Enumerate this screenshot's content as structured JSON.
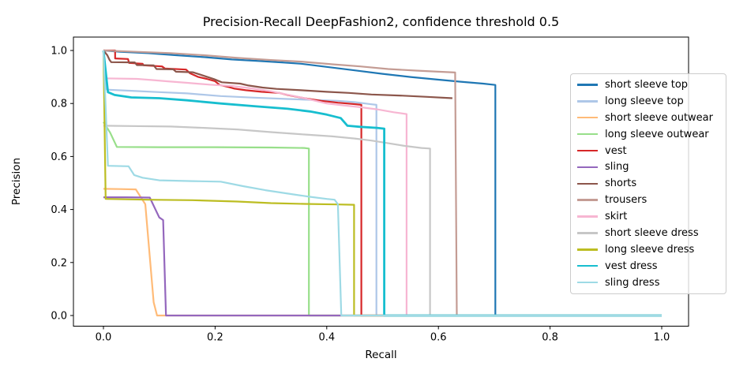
{
  "chart_data": {
    "type": "line",
    "title": "Precision-Recall DeepFashion2, confidence threshold 0.5",
    "xlabel": "Recall",
    "ylabel": "Precision",
    "xlim": [
      0,
      1
    ],
    "ylim": [
      0,
      1
    ],
    "xticks": [
      "0.0",
      "0.2",
      "0.4",
      "0.6",
      "0.8",
      "1.0"
    ],
    "yticks": [
      "0.0",
      "0.2",
      "0.4",
      "0.6",
      "0.8",
      "1.0"
    ],
    "grid": false,
    "legend_position": "upper right inside",
    "legend_border_color": "#cccccc",
    "axes_color": "#000000",
    "series": [
      {
        "name": "short sleeve top",
        "color": "#1f77b4",
        "width": 2.2,
        "points": [
          [
            0,
            1.0
          ],
          [
            0.03,
            0.995
          ],
          [
            0.08,
            0.99
          ],
          [
            0.13,
            0.982
          ],
          [
            0.18,
            0.975
          ],
          [
            0.23,
            0.966
          ],
          [
            0.28,
            0.96
          ],
          [
            0.32,
            0.955
          ],
          [
            0.354,
            0.95
          ],
          [
            0.4,
            0.938
          ],
          [
            0.45,
            0.925
          ],
          [
            0.5,
            0.912
          ],
          [
            0.55,
            0.9
          ],
          [
            0.6,
            0.89
          ],
          [
            0.64,
            0.882
          ],
          [
            0.68,
            0.875
          ],
          [
            0.702,
            0.87
          ],
          [
            0.702,
            0
          ],
          [
            1.0,
            0
          ]
        ]
      },
      {
        "name": "long sleeve top",
        "color": "#aec7e8",
        "width": 2.2,
        "points": [
          [
            0,
            1.0
          ],
          [
            0.006,
            0.852
          ],
          [
            0.05,
            0.848
          ],
          [
            0.1,
            0.843
          ],
          [
            0.15,
            0.838
          ],
          [
            0.21,
            0.828
          ],
          [
            0.27,
            0.822
          ],
          [
            0.33,
            0.817
          ],
          [
            0.38,
            0.813
          ],
          [
            0.42,
            0.81
          ],
          [
            0.45,
            0.805
          ],
          [
            0.48,
            0.797
          ],
          [
            0.489,
            0.795
          ],
          [
            0.489,
            0
          ],
          [
            1.0,
            0
          ]
        ]
      },
      {
        "name": "short sleeve outwear",
        "color": "#ffbb78",
        "width": 2.2,
        "points": [
          [
            0,
            0.478
          ],
          [
            0.03,
            0.477
          ],
          [
            0.058,
            0.476
          ],
          [
            0.075,
            0.42
          ],
          [
            0.09,
            0.05
          ],
          [
            0.096,
            0
          ],
          [
            1.0,
            0
          ]
        ]
      },
      {
        "name": "long sleeve outwear",
        "color": "#98df8a",
        "width": 2.2,
        "points": [
          [
            0,
            0.73
          ],
          [
            0.012,
            0.69
          ],
          [
            0.024,
            0.636
          ],
          [
            0.1,
            0.635
          ],
          [
            0.2,
            0.635
          ],
          [
            0.3,
            0.634
          ],
          [
            0.36,
            0.632
          ],
          [
            0.368,
            0.63
          ],
          [
            0.368,
            0
          ],
          [
            1.0,
            0
          ]
        ]
      },
      {
        "name": "vest",
        "color": "#d62728",
        "width": 2.2,
        "points": [
          [
            0,
            1.0
          ],
          [
            0.021,
            1.0
          ],
          [
            0.021,
            0.97
          ],
          [
            0.044,
            0.968
          ],
          [
            0.046,
            0.953
          ],
          [
            0.07,
            0.95
          ],
          [
            0.072,
            0.944
          ],
          [
            0.105,
            0.94
          ],
          [
            0.11,
            0.932
          ],
          [
            0.148,
            0.928
          ],
          [
            0.155,
            0.914
          ],
          [
            0.17,
            0.9
          ],
          [
            0.185,
            0.893
          ],
          [
            0.2,
            0.884
          ],
          [
            0.208,
            0.87
          ],
          [
            0.225,
            0.862
          ],
          [
            0.235,
            0.856
          ],
          [
            0.255,
            0.85
          ],
          [
            0.283,
            0.844
          ],
          [
            0.315,
            0.84
          ],
          [
            0.33,
            0.832
          ],
          [
            0.36,
            0.82
          ],
          [
            0.39,
            0.81
          ],
          [
            0.42,
            0.803
          ],
          [
            0.448,
            0.798
          ],
          [
            0.462,
            0.795
          ],
          [
            0.462,
            0
          ],
          [
            1.0,
            0
          ]
        ]
      },
      {
        "name": "sling",
        "color": "#9467bd",
        "width": 2.2,
        "points": [
          [
            0,
            0.446
          ],
          [
            0.04,
            0.446
          ],
          [
            0.083,
            0.445
          ],
          [
            0.1,
            0.37
          ],
          [
            0.107,
            0.36
          ],
          [
            0.112,
            0
          ],
          [
            1.0,
            0
          ]
        ]
      },
      {
        "name": "shorts",
        "color": "#8c564b",
        "width": 2.2,
        "points": [
          [
            0,
            1.0
          ],
          [
            0.007,
            0.982
          ],
          [
            0.011,
            0.964
          ],
          [
            0.014,
            0.956
          ],
          [
            0.056,
            0.955
          ],
          [
            0.06,
            0.945
          ],
          [
            0.09,
            0.944
          ],
          [
            0.095,
            0.93
          ],
          [
            0.125,
            0.929
          ],
          [
            0.13,
            0.92
          ],
          [
            0.16,
            0.918
          ],
          [
            0.175,
            0.908
          ],
          [
            0.198,
            0.892
          ],
          [
            0.212,
            0.88
          ],
          [
            0.245,
            0.875
          ],
          [
            0.26,
            0.868
          ],
          [
            0.285,
            0.86
          ],
          [
            0.31,
            0.855
          ],
          [
            0.354,
            0.85
          ],
          [
            0.4,
            0.844
          ],
          [
            0.44,
            0.84
          ],
          [
            0.48,
            0.834
          ],
          [
            0.53,
            0.83
          ],
          [
            0.58,
            0.825
          ],
          [
            0.625,
            0.82
          ]
        ]
      },
      {
        "name": "trousers",
        "color": "#c49c94",
        "width": 2.2,
        "points": [
          [
            0,
            1.0
          ],
          [
            0.06,
            0.995
          ],
          [
            0.12,
            0.99
          ],
          [
            0.18,
            0.982
          ],
          [
            0.24,
            0.972
          ],
          [
            0.3,
            0.964
          ],
          [
            0.354,
            0.958
          ],
          [
            0.41,
            0.948
          ],
          [
            0.46,
            0.94
          ],
          [
            0.51,
            0.93
          ],
          [
            0.56,
            0.924
          ],
          [
            0.6,
            0.92
          ],
          [
            0.63,
            0.917
          ],
          [
            0.633,
            0
          ],
          [
            1.0,
            0
          ]
        ]
      },
      {
        "name": "skirt",
        "color": "#f7b6d2",
        "width": 2.2,
        "points": [
          [
            0,
            0.895
          ],
          [
            0.06,
            0.893
          ],
          [
            0.09,
            0.888
          ],
          [
            0.113,
            0.884
          ],
          [
            0.15,
            0.878
          ],
          [
            0.19,
            0.871
          ],
          [
            0.23,
            0.866
          ],
          [
            0.265,
            0.857
          ],
          [
            0.3,
            0.846
          ],
          [
            0.33,
            0.833
          ],
          [
            0.36,
            0.82
          ],
          [
            0.4,
            0.8
          ],
          [
            0.43,
            0.793
          ],
          [
            0.46,
            0.786
          ],
          [
            0.49,
            0.778
          ],
          [
            0.52,
            0.767
          ],
          [
            0.543,
            0.76
          ],
          [
            0.543,
            0
          ],
          [
            1.0,
            0
          ]
        ]
      },
      {
        "name": "short sleeve dress",
        "color": "#c7c7c7",
        "width": 2.2,
        "points": [
          [
            0,
            0.716
          ],
          [
            0.05,
            0.715
          ],
          [
            0.12,
            0.713
          ],
          [
            0.18,
            0.708
          ],
          [
            0.24,
            0.702
          ],
          [
            0.3,
            0.692
          ],
          [
            0.36,
            0.683
          ],
          [
            0.41,
            0.676
          ],
          [
            0.45,
            0.668
          ],
          [
            0.48,
            0.66
          ],
          [
            0.51,
            0.65
          ],
          [
            0.54,
            0.64
          ],
          [
            0.57,
            0.632
          ],
          [
            0.585,
            0.63
          ],
          [
            0.585,
            0
          ],
          [
            1.0,
            0
          ]
        ]
      },
      {
        "name": "long sleeve dress",
        "color": "#bcbd22",
        "width": 2.2,
        "points": [
          [
            0,
            1.0
          ],
          [
            0.004,
            0.44
          ],
          [
            0.08,
            0.437
          ],
          [
            0.16,
            0.435
          ],
          [
            0.24,
            0.43
          ],
          [
            0.3,
            0.424
          ],
          [
            0.36,
            0.421
          ],
          [
            0.42,
            0.419
          ],
          [
            0.449,
            0.418
          ],
          [
            0.449,
            0
          ],
          [
            1.0,
            0
          ]
        ]
      },
      {
        "name": "vest dress",
        "color": "#17becf",
        "width": 2.8,
        "points": [
          [
            0,
            1.0
          ],
          [
            0.008,
            0.843
          ],
          [
            0.02,
            0.832
          ],
          [
            0.05,
            0.823
          ],
          [
            0.1,
            0.82
          ],
          [
            0.15,
            0.812
          ],
          [
            0.21,
            0.8
          ],
          [
            0.27,
            0.79
          ],
          [
            0.33,
            0.78
          ],
          [
            0.37,
            0.77
          ],
          [
            0.4,
            0.758
          ],
          [
            0.425,
            0.745
          ],
          [
            0.437,
            0.716
          ],
          [
            0.46,
            0.712
          ],
          [
            0.49,
            0.708
          ],
          [
            0.503,
            0.705
          ],
          [
            0.503,
            0
          ],
          [
            1.0,
            0
          ]
        ]
      },
      {
        "name": "sling dress",
        "color": "#9edae5",
        "width": 2.2,
        "points": [
          [
            0,
            1.0
          ],
          [
            0.008,
            0.565
          ],
          [
            0.045,
            0.563
          ],
          [
            0.055,
            0.53
          ],
          [
            0.07,
            0.52
          ],
          [
            0.1,
            0.51
          ],
          [
            0.16,
            0.507
          ],
          [
            0.21,
            0.505
          ],
          [
            0.25,
            0.488
          ],
          [
            0.29,
            0.473
          ],
          [
            0.33,
            0.46
          ],
          [
            0.37,
            0.448
          ],
          [
            0.4,
            0.44
          ],
          [
            0.414,
            0.437
          ],
          [
            0.42,
            0.42
          ],
          [
            0.426,
            0
          ],
          [
            1.0,
            0
          ]
        ]
      }
    ]
  }
}
